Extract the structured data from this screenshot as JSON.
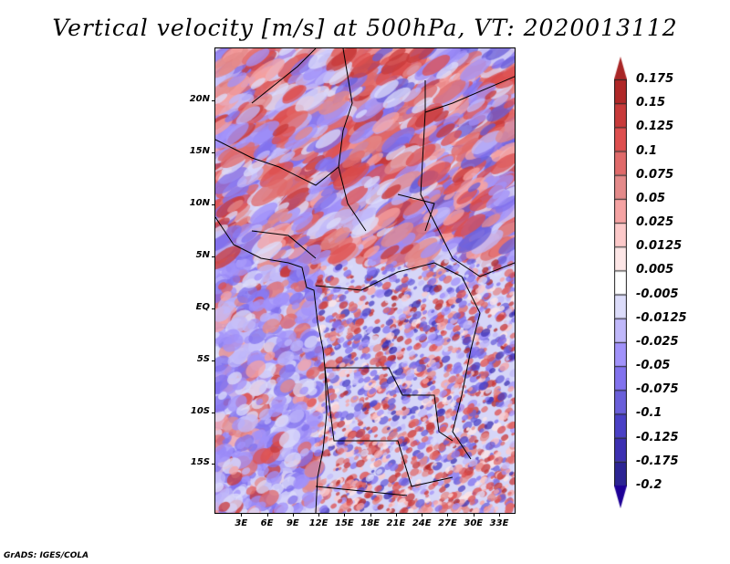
{
  "chart_data": {
    "type": "heatmap",
    "title": "Vertical velocity [m/s] at 500hPa, VT: 2020013112",
    "variable": "Vertical velocity",
    "units": "m/s",
    "level": "500hPa",
    "valid_time": "2020013112",
    "xlim": [
      0,
      34.8
    ],
    "ylim": [
      -19.7,
      25
    ],
    "x_ticks": [
      {
        "value": 3,
        "label": "3E"
      },
      {
        "value": 6,
        "label": "6E"
      },
      {
        "value": 9,
        "label": "9E"
      },
      {
        "value": 12,
        "label": "12E"
      },
      {
        "value": 15,
        "label": "15E"
      },
      {
        "value": 18,
        "label": "18E"
      },
      {
        "value": 21,
        "label": "21E"
      },
      {
        "value": 24,
        "label": "24E"
      },
      {
        "value": 27,
        "label": "27E"
      },
      {
        "value": 30,
        "label": "30E"
      },
      {
        "value": 33,
        "label": "33E"
      }
    ],
    "y_ticks": [
      {
        "value": 20,
        "label": "20N"
      },
      {
        "value": 15,
        "label": "15N"
      },
      {
        "value": 10,
        "label": "10N"
      },
      {
        "value": 5,
        "label": "5N"
      },
      {
        "value": 0,
        "label": "EQ"
      },
      {
        "value": -5,
        "label": "5S"
      },
      {
        "value": -10,
        "label": "10S"
      },
      {
        "value": -15,
        "label": "15S"
      }
    ],
    "colorbar": {
      "labels": [
        "0.175",
        "0.15",
        "0.125",
        "0.1",
        "0.075",
        "0.05",
        "0.025",
        "0.0125",
        "0.005",
        "-0.005",
        "-0.0125",
        "-0.025",
        "-0.05",
        "-0.075",
        "-0.1",
        "-0.125",
        "-0.175",
        "-0.2"
      ],
      "colors": [
        "#b02828",
        "#c83a3a",
        "#de4f4f",
        "#e06a6a",
        "#e48a8a",
        "#f5a3a3",
        "#fcc9c9",
        "#fde6e6",
        "#ffffff",
        "#dcdcfa",
        "#c0b8fa",
        "#a192fa",
        "#8272ee",
        "#6a5fda",
        "#4a40c6",
        "#3c30b2",
        "#2c2494"
      ],
      "over_color": "#a82626",
      "under_color": "#1e0096"
    }
  },
  "credit": "GrADS: IGES/COLA"
}
